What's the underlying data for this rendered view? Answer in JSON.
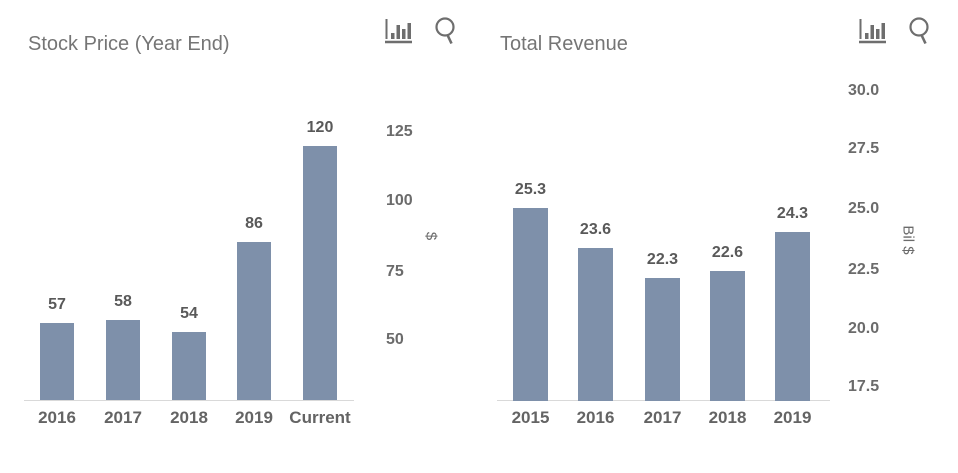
{
  "page": {
    "background": "#ffffff"
  },
  "toolbar": {
    "icons": [
      "bar-chart-icon",
      "search-icon"
    ]
  },
  "colors": {
    "bar": "#7e90aa",
    "title_text": "#757575",
    "data_label": "#595959",
    "axis_label": "#6b6b6b",
    "axis_line": "#d9d9d9",
    "icon": "#6e6e6e"
  },
  "chart_data": [
    {
      "type": "bar",
      "title": "Stock Price (Year End)",
      "categories": [
        "2016",
        "2017",
        "2018",
        "2019",
        "Current"
      ],
      "values": [
        57,
        58,
        54,
        86,
        120
      ],
      "bar_labels": [
        "57",
        "58",
        "54",
        "86",
        "120"
      ],
      "xlabel": "",
      "ylabel": "$",
      "yticks": [
        "125",
        "100",
        "75",
        "50"
      ],
      "ylim": [
        30,
        130
      ],
      "yaxis_side": "right",
      "grid": false,
      "legend": false,
      "bar_color": "#7e90aa"
    },
    {
      "type": "bar",
      "title": "Total Revenue",
      "categories": [
        "2015",
        "2016",
        "2017",
        "2018",
        "2019"
      ],
      "values": [
        25.3,
        23.6,
        22.3,
        22.6,
        24.3
      ],
      "bar_labels": [
        "25.3",
        "23.6",
        "22.3",
        "22.6",
        "24.3"
      ],
      "xlabel": "",
      "ylabel": "Bil $",
      "yticks": [
        "30.0",
        "27.5",
        "25.0",
        "22.5",
        "20.0",
        "17.5"
      ],
      "ylim": [
        17,
        30
      ],
      "yaxis_side": "right",
      "grid": false,
      "legend": false,
      "bar_color": "#7e90aa"
    }
  ]
}
